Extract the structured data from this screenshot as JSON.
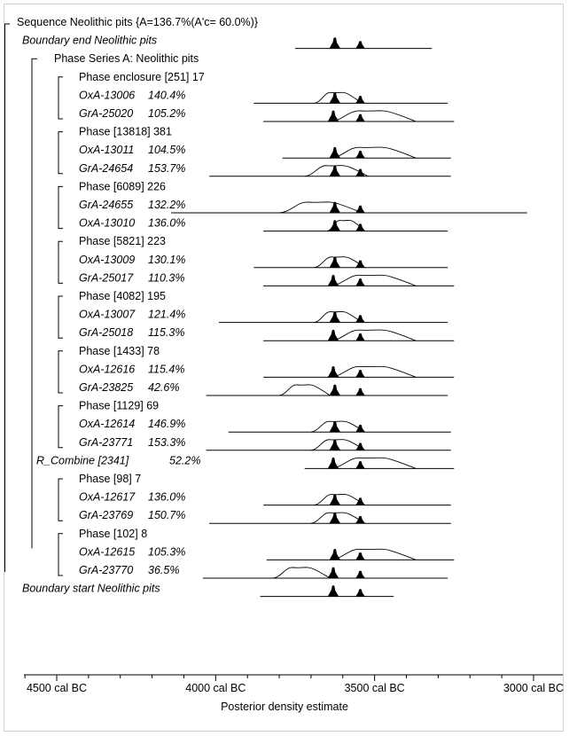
{
  "chart_data": {
    "type": "area",
    "xlabel": "Posterior density estimate",
    "x_axis_reversed": true,
    "xlim_cal_bc": [
      4550,
      2950
    ],
    "x_ticks": [
      {
        "value": 4500,
        "label": "4500 cal BC"
      },
      {
        "value": 4000,
        "label": "4000 cal BC"
      },
      {
        "value": 3500,
        "label": "3500 cal BC"
      },
      {
        "value": 3000,
        "label": "3000 cal BC"
      }
    ],
    "sequence": {
      "title": "Sequence Neolithic pits {A=136.7%(A'c= 60.0%)}"
    },
    "phase_series": {
      "title": "Phase Series A: Neolithic pits"
    },
    "rows": [
      {
        "kind": "boundary",
        "label": "Boundary end Neolithic pits",
        "range": [
          3750,
          3320
        ],
        "peaks": [
          3625,
          3545
        ],
        "raw": false
      },
      {
        "kind": "phase",
        "label": "Phase enclosure [251] 17"
      },
      {
        "kind": "date",
        "lab": "OxA-13006",
        "agreement": "140.4%",
        "range": [
          3880,
          3270
        ],
        "peaks": [
          3625,
          3545
        ],
        "raw": true,
        "raw_hump": [
          3690,
          3540
        ]
      },
      {
        "kind": "date",
        "lab": "GrA-25020",
        "agreement": "105.2%",
        "range": [
          3850,
          3250
        ],
        "peaks": [
          3630,
          3545
        ],
        "raw": true,
        "raw_hump": [
          3640,
          3370
        ]
      },
      {
        "kind": "phase",
        "label": "Phase [13818] 381"
      },
      {
        "kind": "date",
        "lab": "OxA-13011",
        "agreement": "104.5%",
        "range": [
          3790,
          3260
        ],
        "peaks": [
          3625,
          3545
        ],
        "raw": true,
        "raw_hump": [
          3640,
          3370
        ]
      },
      {
        "kind": "date",
        "lab": "GrA-24654",
        "agreement": "153.7%",
        "range": [
          4020,
          3260
        ],
        "peaks": [
          3625,
          3545
        ],
        "raw": true,
        "raw_hump": [
          3720,
          3520
        ]
      },
      {
        "kind": "phase",
        "label": "Phase [6089] 226"
      },
      {
        "kind": "date",
        "lab": "GrA-24655",
        "agreement": "132.2%",
        "range": [
          4140,
          3020
        ],
        "peaks": [
          3625,
          3545
        ],
        "raw": true,
        "raw_hump": [
          3800,
          3540
        ]
      },
      {
        "kind": "date",
        "lab": "OxA-13010",
        "agreement": "136.0%",
        "range": [
          3850,
          3270
        ],
        "peaks": [
          3625,
          3545
        ],
        "raw": true,
        "raw_hump": [
          3650,
          3530
        ]
      },
      {
        "kind": "phase",
        "label": "Phase [5821] 223"
      },
      {
        "kind": "date",
        "lab": "OxA-13009",
        "agreement": "130.1%",
        "range": [
          3880,
          3270
        ],
        "peaks": [
          3625,
          3545
        ],
        "raw": true,
        "raw_hump": [
          3690,
          3530
        ]
      },
      {
        "kind": "date",
        "lab": "GrA-25017",
        "agreement": "110.3%",
        "range": [
          3850,
          3250
        ],
        "peaks": [
          3630,
          3545
        ],
        "raw": true,
        "raw_hump": [
          3640,
          3370
        ]
      },
      {
        "kind": "phase",
        "label": "Phase [4082] 195"
      },
      {
        "kind": "date",
        "lab": "OxA-13007",
        "agreement": "121.4%",
        "range": [
          3990,
          3270
        ],
        "peaks": [
          3625,
          3545
        ],
        "raw": true,
        "raw_hump": [
          3690,
          3540
        ]
      },
      {
        "kind": "date",
        "lab": "GrA-25018",
        "agreement": "115.3%",
        "range": [
          3850,
          3250
        ],
        "peaks": [
          3630,
          3545
        ],
        "raw": true,
        "raw_hump": [
          3640,
          3370
        ]
      },
      {
        "kind": "phase",
        "label": "Phase [1433] 78"
      },
      {
        "kind": "date",
        "lab": "OxA-12616",
        "agreement": "115.4%",
        "range": [
          3850,
          3250
        ],
        "peaks": [
          3630,
          3545
        ],
        "raw": true,
        "raw_hump": [
          3640,
          3370
        ]
      },
      {
        "kind": "date",
        "lab": "GrA-23825",
        "agreement": "42.6%",
        "range": [
          4030,
          3270
        ],
        "peaks": [
          3625,
          3545
        ],
        "raw": true,
        "raw_hump": [
          3800,
          3640
        ]
      },
      {
        "kind": "phase",
        "label": "Phase [1129] 69"
      },
      {
        "kind": "date",
        "lab": "OxA-12614",
        "agreement": "146.9%",
        "range": [
          3960,
          3260
        ],
        "peaks": [
          3625,
          3545
        ],
        "raw": true,
        "raw_hump": [
          3700,
          3530
        ]
      },
      {
        "kind": "date",
        "lab": "GrA-23771",
        "agreement": "153.3%",
        "range": [
          4030,
          3260
        ],
        "peaks": [
          3625,
          3545
        ],
        "raw": true,
        "raw_hump": [
          3700,
          3530
        ]
      },
      {
        "kind": "rcomb",
        "label": "R_Combine [2341]",
        "agreement": "52.2%",
        "range": [
          3720,
          3250
        ],
        "peaks": [
          3630,
          3545
        ],
        "raw": true,
        "raw_hump": [
          3640,
          3370
        ]
      },
      {
        "kind": "phase",
        "label": "Phase [98] 7"
      },
      {
        "kind": "date",
        "lab": "OxA-12617",
        "agreement": "136.0%",
        "range": [
          3850,
          3260
        ],
        "peaks": [
          3625,
          3545
        ],
        "raw": true,
        "raw_hump": [
          3690,
          3530
        ]
      },
      {
        "kind": "date",
        "lab": "GrA-23769",
        "agreement": "150.7%",
        "range": [
          4020,
          3260
        ],
        "peaks": [
          3625,
          3545
        ],
        "raw": true,
        "raw_hump": [
          3700,
          3530
        ]
      },
      {
        "kind": "phase",
        "label": "Phase [102] 8"
      },
      {
        "kind": "date",
        "lab": "OxA-12615",
        "agreement": "105.3%",
        "range": [
          3840,
          3250
        ],
        "peaks": [
          3625,
          3545
        ],
        "raw": true,
        "raw_hump": [
          3640,
          3370
        ]
      },
      {
        "kind": "date",
        "lab": "GrA-23770",
        "agreement": "36.5%",
        "range": [
          4040,
          3270
        ],
        "peaks": [
          3630,
          3545
        ],
        "raw": true,
        "raw_hump": [
          3820,
          3640
        ]
      },
      {
        "kind": "boundary",
        "label": "Boundary start Neolithic pits",
        "range": [
          3860,
          3440
        ],
        "peaks": [
          3630,
          3545
        ],
        "raw": false
      }
    ]
  }
}
